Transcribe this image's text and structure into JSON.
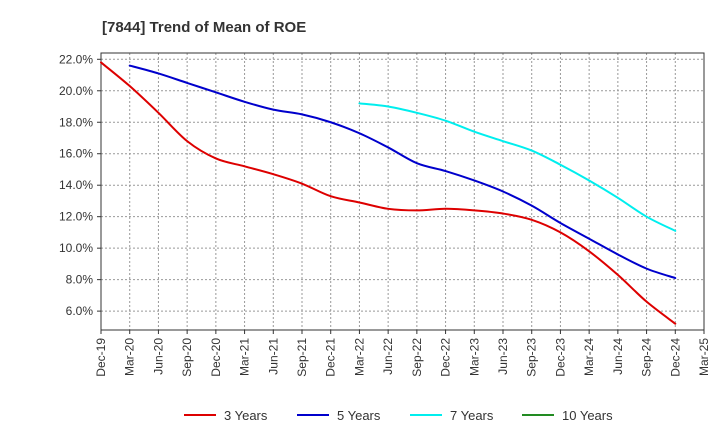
{
  "chart_data": {
    "type": "line",
    "title": "[7844]  Trend of Mean of ROE",
    "xlabel": "",
    "ylabel": "",
    "categories": [
      "Dec-19",
      "Mar-20",
      "Jun-20",
      "Sep-20",
      "Dec-20",
      "Mar-21",
      "Jun-21",
      "Sep-21",
      "Dec-21",
      "Mar-22",
      "Jun-22",
      "Sep-22",
      "Dec-22",
      "Mar-23",
      "Jun-23",
      "Sep-23",
      "Dec-23",
      "Mar-24",
      "Jun-24",
      "Sep-24",
      "Dec-24",
      "Mar-25"
    ],
    "y_ticks": [
      "6.0%",
      "8.0%",
      "10.0%",
      "12.0%",
      "14.0%",
      "16.0%",
      "18.0%",
      "20.0%",
      "22.0%"
    ],
    "ylim": [
      4.8,
      22.4
    ],
    "grid": true,
    "series": [
      {
        "name": "3 Years",
        "color": "#dd0000",
        "values": [
          21.8,
          20.3,
          18.6,
          16.8,
          15.7,
          15.2,
          14.7,
          14.1,
          13.3,
          12.9,
          12.5,
          12.4,
          12.5,
          12.4,
          12.2,
          11.8,
          11.0,
          9.8,
          8.3,
          6.6,
          5.2,
          null
        ]
      },
      {
        "name": "5 Years",
        "color": "#0000cc",
        "values": [
          null,
          21.6,
          21.1,
          20.5,
          19.9,
          19.3,
          18.8,
          18.5,
          18.0,
          17.3,
          16.4,
          15.4,
          14.9,
          14.3,
          13.6,
          12.7,
          11.6,
          10.6,
          9.6,
          8.7,
          8.1,
          null
        ]
      },
      {
        "name": "7 Years",
        "color": "#00eeee",
        "values": [
          null,
          null,
          null,
          null,
          null,
          null,
          null,
          null,
          null,
          19.2,
          19.0,
          18.6,
          18.1,
          17.4,
          16.8,
          16.2,
          15.3,
          14.3,
          13.2,
          12.0,
          11.1,
          null
        ]
      },
      {
        "name": "10 Years",
        "color": "#228b22",
        "values": [
          null,
          null,
          null,
          null,
          null,
          null,
          null,
          null,
          null,
          null,
          null,
          null,
          null,
          null,
          null,
          null,
          null,
          null,
          null,
          null,
          null,
          null
        ]
      }
    ],
    "legend": "bottom"
  }
}
